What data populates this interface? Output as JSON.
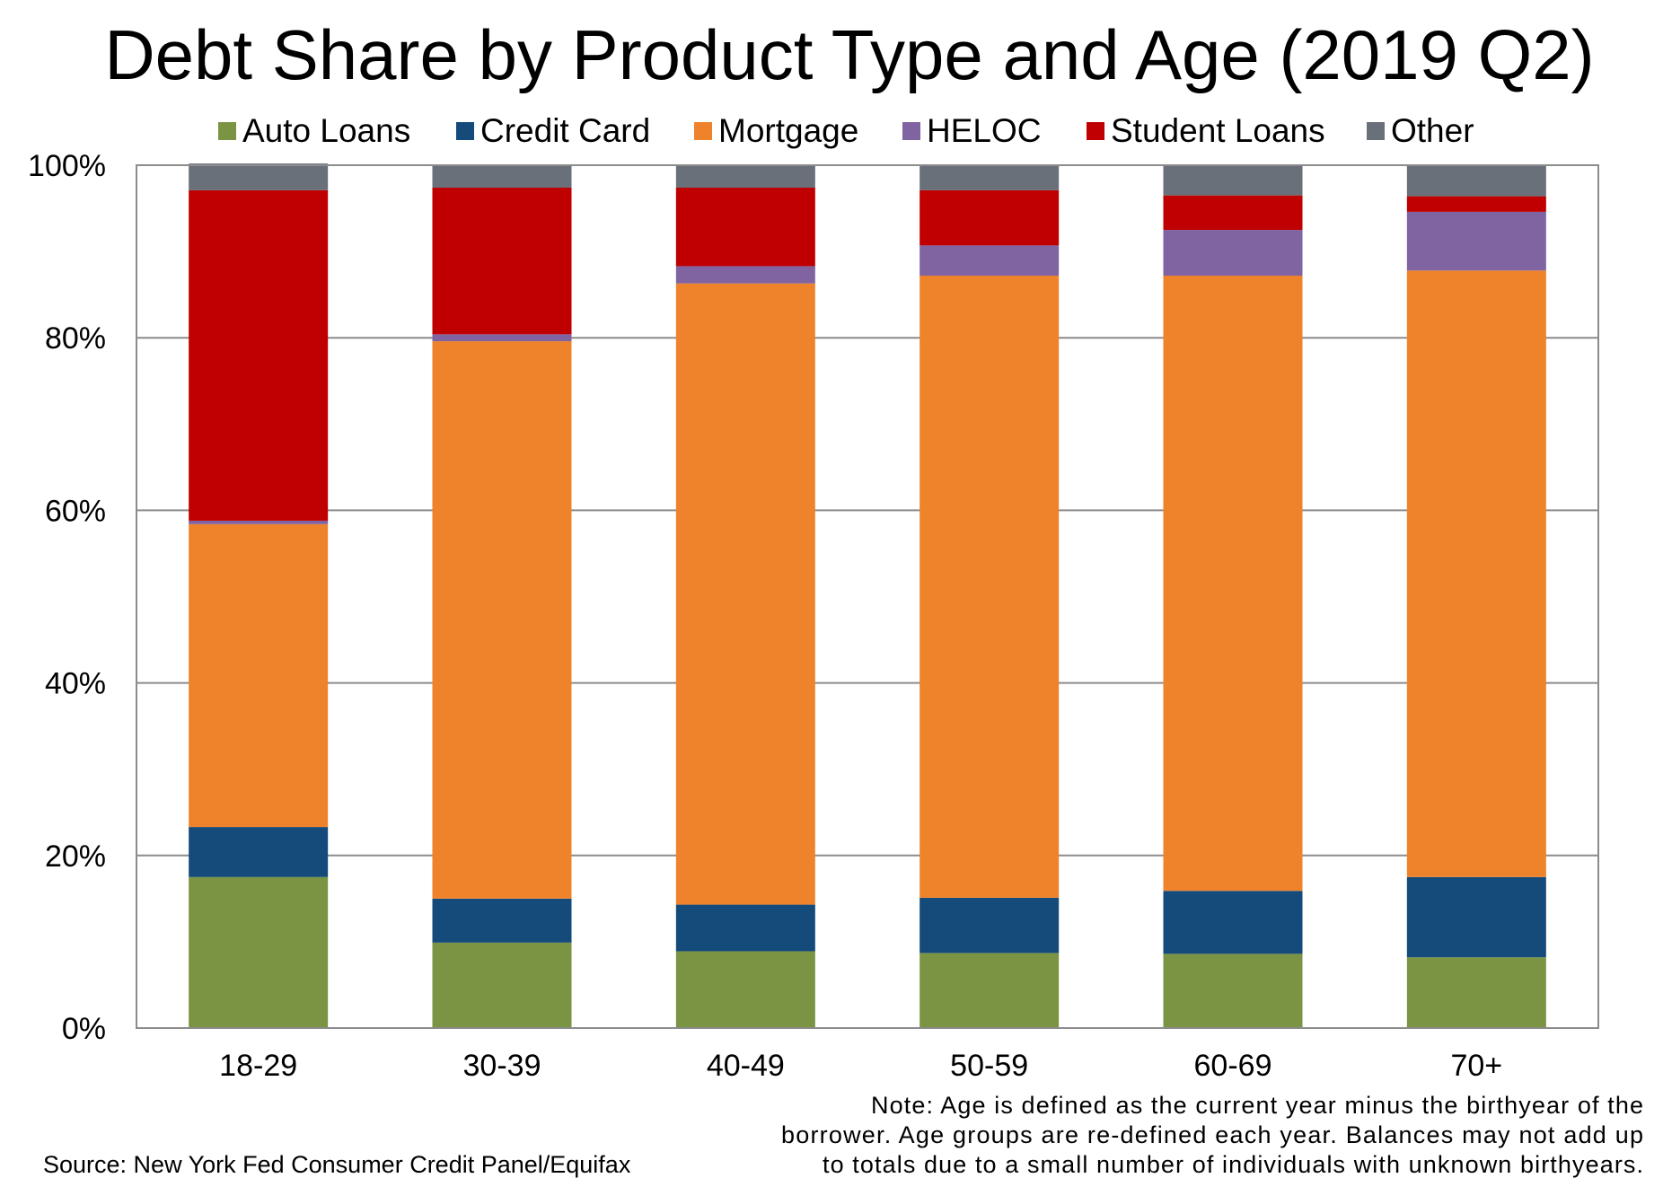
{
  "chart_data": {
    "type": "bar",
    "stacked": true,
    "title": "Debt Share by Product Type and Age (2019 Q2)",
    "categories": [
      "18-29",
      "30-39",
      "40-49",
      "50-59",
      "60-69",
      "70+"
    ],
    "series": [
      {
        "name": "Auto Loans",
        "color": "#7a9444",
        "values": [
          17.5,
          9.9,
          8.9,
          8.7,
          8.6,
          8.2
        ]
      },
      {
        "name": "Credit Card",
        "color": "#154b7b",
        "values": [
          5.8,
          5.1,
          5.4,
          6.4,
          7.3,
          9.3
        ]
      },
      {
        "name": "Mortgage",
        "color": "#ee832c",
        "values": [
          35.1,
          64.6,
          72.0,
          72.1,
          71.3,
          70.3
        ]
      },
      {
        "name": "HELOC",
        "color": "#8064a2",
        "values": [
          0.4,
          0.8,
          2.0,
          3.5,
          5.3,
          6.8
        ]
      },
      {
        "name": "Student Loans",
        "color": "#c00000",
        "values": [
          38.3,
          17.0,
          9.1,
          6.4,
          4.0,
          1.8
        ]
      },
      {
        "name": "Other",
        "color": "#69707a",
        "values": [
          3.1,
          2.6,
          2.6,
          2.9,
          3.5,
          3.7
        ]
      }
    ],
    "yticks": [
      "0%",
      "20%",
      "40%",
      "60%",
      "80%",
      "100%"
    ],
    "ylim": [
      0,
      100
    ],
    "grid": true,
    "legend": "top"
  },
  "footer": {
    "source": "Source: New York Fed Consumer Credit Panel/Equifax",
    "note_lines": [
      "Note: Age is defined as the current year minus the birthyear of the",
      "borrower. Age groups are re-defined each year. Balances may not add up",
      "to totals due to a small number of individuals with unknown birthyears."
    ]
  }
}
